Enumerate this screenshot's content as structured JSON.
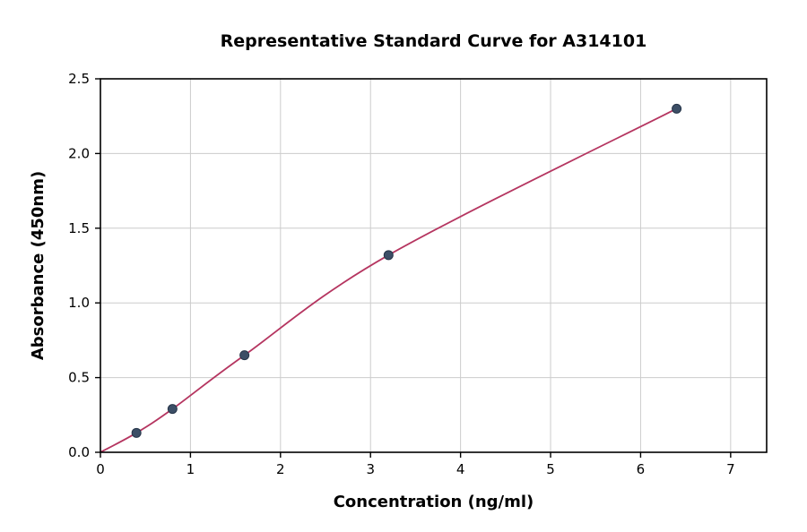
{
  "chart_data": {
    "type": "line",
    "title": "Representative Standard Curve for A314101",
    "xlabel": "Concentration (ng/ml)",
    "ylabel": "Absorbance (450nm)",
    "x": [
      0.4,
      0.8,
      1.6,
      3.2,
      6.4
    ],
    "y": [
      0.13,
      0.29,
      0.65,
      1.32,
      2.3
    ],
    "curve_origin": [
      0,
      0.0
    ],
    "xlim": [
      0,
      7.4
    ],
    "ylim": [
      0,
      2.5
    ],
    "xticks": [
      0,
      1,
      2,
      3,
      4,
      5,
      6,
      7
    ],
    "yticks": [
      0.0,
      0.5,
      1.0,
      1.5,
      2.0,
      2.5
    ],
    "grid": true,
    "legend": "none",
    "colors": {
      "line": "#b53560",
      "marker_fill": "#3c4e66",
      "marker_edge": "#263549",
      "grid": "#cccccc",
      "axis": "#000000",
      "background": "#ffffff"
    }
  }
}
